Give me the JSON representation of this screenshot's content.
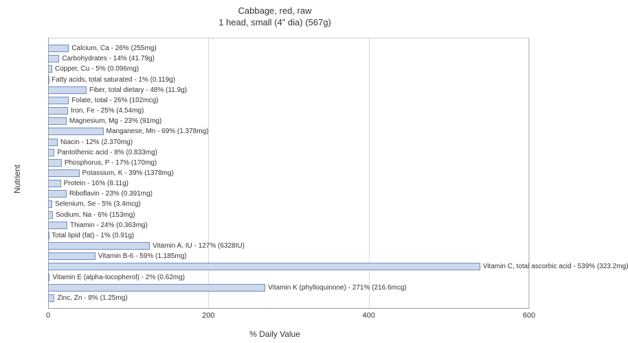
{
  "chart": {
    "title_line1": "Cabbage, red, raw",
    "title_line2": "1 head, small (4\" dia) (567g)",
    "title_fontsize": 13,
    "title_color": "#333333",
    "x_axis_label": "% Daily Value",
    "y_axis_label": "Nutrient",
    "axis_label_fontsize": 12,
    "bar_label_fontsize": 10,
    "background_color": "#ffffff",
    "panel_background": "#ffffff",
    "outer_background": "#ebebeb",
    "grid_color": "#d9d9d9",
    "bar_fill_color": "#cdd9ec",
    "bar_border_color": "#6b8cc4",
    "xlim": [
      0,
      600
    ],
    "x_ticks": [
      0,
      200,
      400,
      600
    ],
    "nutrients": [
      {
        "label": "Calcium, Ca - 26% (255mg)",
        "value": 26
      },
      {
        "label": "Carbohydrates - 14% (41.79g)",
        "value": 14
      },
      {
        "label": "Copper, Cu - 5% (0.096mg)",
        "value": 5
      },
      {
        "label": "Fatty acids, total saturated - 1% (0.119g)",
        "value": 1
      },
      {
        "label": "Fiber, total dietary - 48% (11.9g)",
        "value": 48
      },
      {
        "label": "Folate, total - 26% (102mcg)",
        "value": 26
      },
      {
        "label": "Iron, Fe - 25% (4.54mg)",
        "value": 25
      },
      {
        "label": "Magnesium, Mg - 23% (91mg)",
        "value": 23
      },
      {
        "label": "Manganese, Mn - 69% (1.378mg)",
        "value": 69
      },
      {
        "label": "Niacin - 12% (2.370mg)",
        "value": 12
      },
      {
        "label": "Pantothenic acid - 8% (0.833mg)",
        "value": 8
      },
      {
        "label": "Phosphorus, P - 17% (170mg)",
        "value": 17
      },
      {
        "label": "Potassium, K - 39% (1378mg)",
        "value": 39
      },
      {
        "label": "Protein - 16% (8.11g)",
        "value": 16
      },
      {
        "label": "Riboflavin - 23% (0.391mg)",
        "value": 23
      },
      {
        "label": "Selenium, Se - 5% (3.4mcg)",
        "value": 5
      },
      {
        "label": "Sodium, Na - 6% (153mg)",
        "value": 6
      },
      {
        "label": "Thiamin - 24% (0.363mg)",
        "value": 24
      },
      {
        "label": "Total lipid (fat) - 1% (0.91g)",
        "value": 1
      },
      {
        "label": "Vitamin A, IU - 127% (6328IU)",
        "value": 127
      },
      {
        "label": "Vitamin B-6 - 59% (1.185mg)",
        "value": 59
      },
      {
        "label": "Vitamin C, total ascorbic acid - 539% (323.2mg)",
        "value": 539
      },
      {
        "label": "Vitamin E (alpha-tocopherol) - 2% (0.62mg)",
        "value": 2
      },
      {
        "label": "Vitamin K (phylloquinone) - 271% (216.6mcg)",
        "value": 271
      },
      {
        "label": "Zinc, Zn - 8% (1.25mg)",
        "value": 8
      }
    ]
  }
}
